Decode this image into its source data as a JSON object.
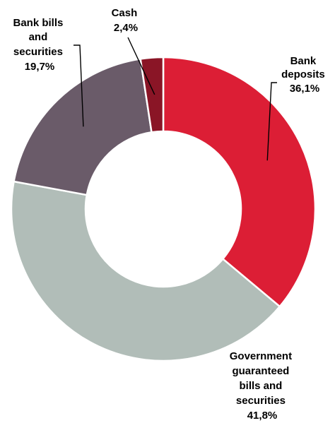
{
  "chart_data": {
    "type": "pie",
    "donut": true,
    "title": "",
    "slices": [
      {
        "label": "Bank deposits",
        "label_lines": [
          "Bank",
          "deposits"
        ],
        "value_label": "36,1%",
        "value": 36.1,
        "color": "#dc1e35"
      },
      {
        "label": "Government guaranteed bills and securities",
        "label_lines": [
          "Government",
          "guaranteed",
          "bills and",
          "securities"
        ],
        "value_label": "41,8%",
        "value": 41.8,
        "color": "#b1bdb8"
      },
      {
        "label": "Bank bills and securities",
        "label_lines": [
          "Bank bills",
          "and",
          "securities"
        ],
        "value_label": "19,7%",
        "value": 19.7,
        "color": "#6a5b69"
      },
      {
        "label": "Cash",
        "label_lines": [
          "Cash"
        ],
        "value_label": "2,4%",
        "value": 2.4,
        "color": "#8a1526"
      }
    ]
  }
}
